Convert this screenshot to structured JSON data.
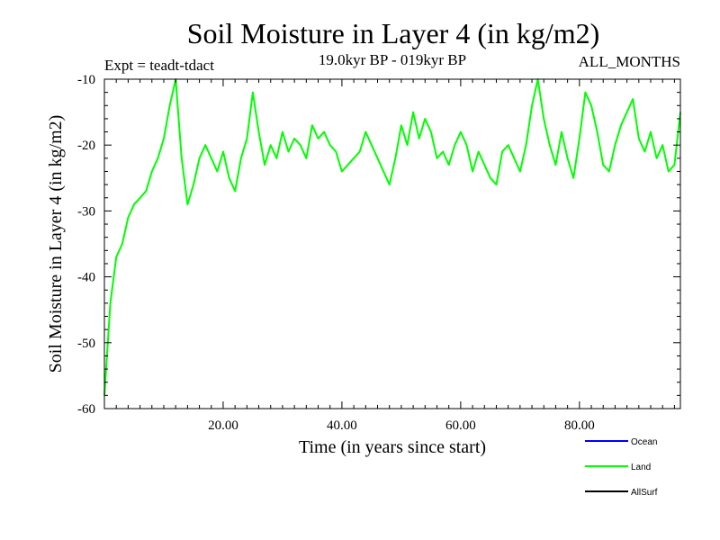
{
  "chart_data": {
    "type": "line",
    "title": "Soil Moisture in Layer 4 (in kg/m2)",
    "subtitle_left": "Expt = teadt-tdact",
    "subtitle_center": "19.0kyr BP - 019kyr BP",
    "subtitle_right": "ALL_MONTHS",
    "xlabel": "Time (in years since start)",
    "ylabel": "Soil Moisture in Layer 4 (in kg/m2)",
    "xlim": [
      0,
      97
    ],
    "ylim": [
      -60,
      -10
    ],
    "xticks": [
      20,
      40,
      60,
      80
    ],
    "xtick_labels": [
      "20.00",
      "40.00",
      "60.00",
      "80.00"
    ],
    "yticks": [
      -60,
      -50,
      -40,
      -30,
      -20,
      -10
    ],
    "ytick_labels": [
      "-60",
      "-50",
      "-40",
      "-30",
      "-20",
      "-10"
    ],
    "legend": [
      {
        "name": "Ocean",
        "color": "#0000ff"
      },
      {
        "name": "Land",
        "color": "#00ff00"
      },
      {
        "name": "AllSurf",
        "color": "#000000"
      }
    ],
    "series": [
      {
        "name": "Land",
        "color": "#00ff00",
        "x": [
          0,
          1,
          2,
          3,
          4,
          5,
          6,
          7,
          8,
          9,
          10,
          11,
          12,
          13,
          14,
          15,
          16,
          17,
          18,
          19,
          20,
          21,
          22,
          23,
          24,
          25,
          26,
          27,
          28,
          29,
          30,
          31,
          32,
          33,
          34,
          35,
          36,
          37,
          38,
          39,
          40,
          41,
          42,
          43,
          44,
          45,
          46,
          47,
          48,
          49,
          50,
          51,
          52,
          53,
          54,
          55,
          56,
          57,
          58,
          59,
          60,
          61,
          62,
          63,
          64,
          65,
          66,
          67,
          68,
          69,
          70,
          71,
          72,
          73,
          74,
          75,
          76,
          77,
          78,
          79,
          80,
          81,
          82,
          83,
          84,
          85,
          86,
          87,
          88,
          89,
          90,
          91,
          92,
          93,
          94,
          95,
          96,
          97
        ],
        "y": [
          -58,
          -44,
          -37,
          -35,
          -31,
          -29,
          -28,
          -27,
          -24,
          -22,
          -19,
          -14,
          -10,
          -22,
          -29,
          -26,
          -22,
          -20,
          -22,
          -24,
          -21,
          -25,
          -27,
          -22,
          -19,
          -12,
          -18,
          -23,
          -20,
          -22,
          -18,
          -21,
          -19,
          -20,
          -22,
          -17,
          -19,
          -18,
          -20,
          -21,
          -24,
          -23,
          -22,
          -21,
          -18,
          -20,
          -22,
          -24,
          -26,
          -22,
          -17,
          -20,
          -15,
          -19,
          -16,
          -18,
          -22,
          -21,
          -23,
          -20,
          -18,
          -20,
          -24,
          -21,
          -23,
          -25,
          -26,
          -21,
          -20,
          -22,
          -24,
          -20,
          -14,
          -10,
          -16,
          -20,
          -23,
          -18,
          -22,
          -25,
          -19,
          -12,
          -14,
          -18,
          -23,
          -24,
          -20,
          -17,
          -15,
          -13,
          -19,
          -21,
          -18,
          -22,
          -20,
          -24,
          -23,
          -15
        ]
      }
    ]
  }
}
